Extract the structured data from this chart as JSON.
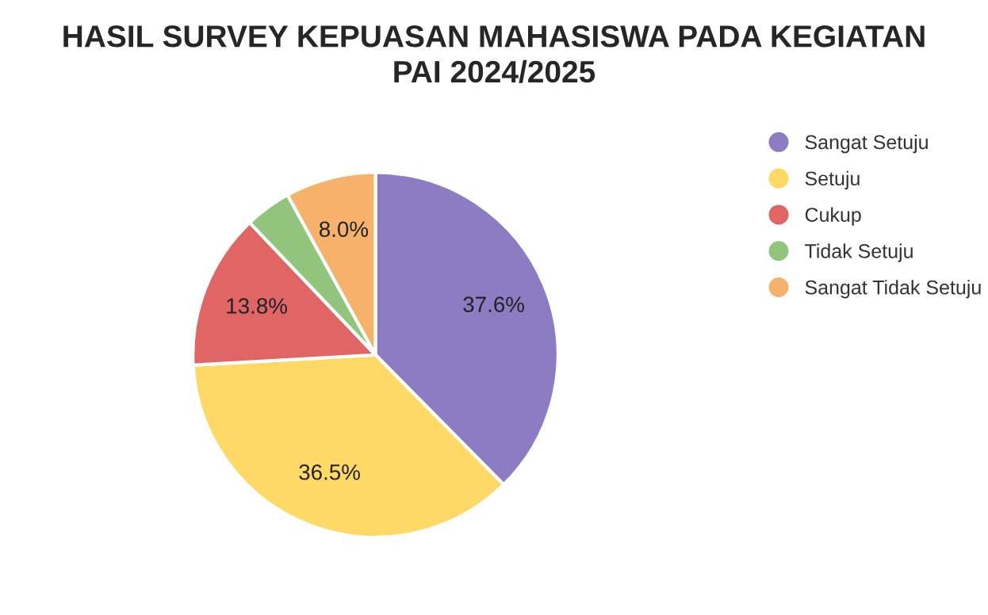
{
  "chart_data": {
    "type": "pie",
    "title": "HASIL SURVEY KEPUASAN MAHASISWA PADA KEGIATAN\nPAI 2024/2025",
    "categories": [
      "Sangat Setuju",
      "Setuju",
      "Cukup",
      "Tidak Setuju",
      "Sangat Tidak Setuju"
    ],
    "values": [
      37.6,
      36.5,
      13.8,
      4.1,
      8.0
    ],
    "value_labels": [
      "37.6%",
      "36.5%",
      "13.8%",
      null,
      "8.0%"
    ],
    "colors": [
      "#8e7cc3",
      "#ffd966",
      "#e06666",
      "#93c47d",
      "#f6b26b"
    ],
    "legend": "right"
  }
}
